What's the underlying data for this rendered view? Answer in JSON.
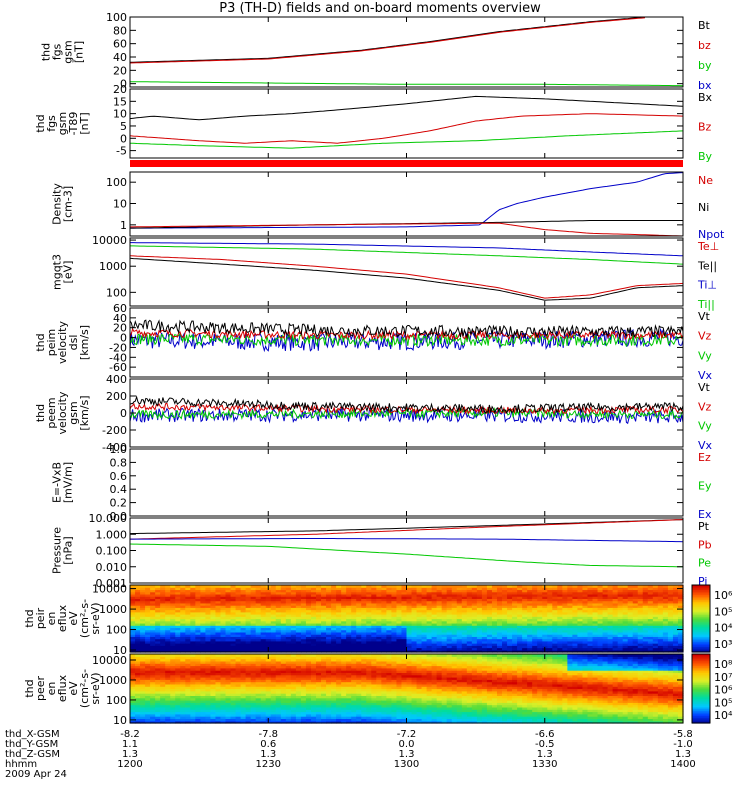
{
  "title": "P3 (TH-D) fields and on-board moments overview",
  "date": "2009 Apr 24",
  "colorbar1": {
    "ticks": [
      "10⁶",
      "10⁵",
      "10⁴",
      "10³"
    ]
  },
  "colorbar2": {
    "ticks": [
      "10⁸",
      "10⁷",
      "10⁶",
      "10⁵",
      "10⁴"
    ]
  },
  "colors": {
    "black": "#000000",
    "red": "#d40000",
    "green": "#00c800",
    "blue": "#0000c8",
    "bar": "#ff0000"
  },
  "chart_data": {
    "type": "line",
    "x_ticks": [
      "1200",
      "1230",
      "1300",
      "1330",
      "1400"
    ],
    "x_tick_minutes": [
      0,
      30,
      60,
      90,
      120
    ],
    "ephemeris": [
      {
        "label": "thd_X-GSM",
        "values": [
          "-8.2",
          "-7.8",
          "-7.2",
          "-6.6",
          "-5.8"
        ]
      },
      {
        "label": "thd_Y-GSM",
        "values": [
          "1.1",
          "0.6",
          "0.0",
          "-0.5",
          "-1.0"
        ]
      },
      {
        "label": "thd_Z-GSM",
        "values": [
          "1.3",
          "1.3",
          "1.3",
          "1.3",
          "1.3"
        ]
      },
      {
        "label": "hhmm",
        "values": [
          "1200",
          "1230",
          "1300",
          "1330",
          "1400"
        ]
      }
    ],
    "panels": [
      {
        "ylabel": [
          "thd",
          "fgs",
          "gsm",
          "[nT]"
        ],
        "scale": "linear",
        "ylim": [
          -5,
          100
        ],
        "yticks": [
          "100",
          "80",
          "60",
          "40",
          "20",
          "0"
        ],
        "ytick_values": [
          100,
          80,
          60,
          40,
          20,
          0
        ],
        "legend": [
          {
            "text": "Bt",
            "color": "#000000"
          },
          {
            "text": "bz",
            "color": "#d40000"
          },
          {
            "text": "by",
            "color": "#00c800"
          },
          {
            "text": "bx",
            "color": "#0000c8"
          }
        ],
        "series": [
          {
            "name": "Bt",
            "color": "#000000",
            "x": [
              0,
              30,
              50,
              65,
              80,
              100,
              112
            ],
            "y": [
              32,
              38,
              50,
              63,
              78,
              93,
              100
            ]
          },
          {
            "name": "bz",
            "color": "#d40000",
            "x": [
              0,
              30,
              50,
              65,
              80,
              100,
              112
            ],
            "y": [
              31,
              37,
              49,
              62,
              77,
              92,
              99
            ]
          },
          {
            "name": "by",
            "color": "#00c800",
            "x": [
              0,
              30,
              60,
              90,
              120
            ],
            "y": [
              3,
              1,
              -1,
              -1,
              -3
            ]
          },
          {
            "name": "bx",
            "color": "#0000c8",
            "x": [
              0,
              60,
              120
            ],
            "y": [
              -5,
              -5,
              -5
            ]
          }
        ]
      },
      {
        "ylabel": [
          "thd",
          "fgs",
          "gsm",
          "-T89",
          "[nT]"
        ],
        "scale": "linear",
        "ylim": [
          -8,
          20
        ],
        "yticks": [
          "20",
          "15",
          "10",
          "5",
          "0",
          "-5"
        ],
        "ytick_values": [
          20,
          15,
          10,
          5,
          0,
          -5
        ],
        "legend": [
          {
            "text": "Bx",
            "color": "#000000"
          },
          {
            "text": "Bz",
            "color": "#d40000"
          },
          {
            "text": "By",
            "color": "#00c800"
          }
        ],
        "series": [
          {
            "name": "Bx",
            "color": "#000000",
            "x": [
              0,
              5,
              15,
              25,
              35,
              45,
              60,
              75,
              90,
              100,
              110,
              120
            ],
            "y": [
              8,
              9,
              7.5,
              9,
              10,
              11.5,
              14,
              17,
              16,
              15,
              14,
              13
            ]
          },
          {
            "name": "Bz",
            "color": "#d40000",
            "x": [
              0,
              15,
              25,
              35,
              45,
              55,
              65,
              75,
              85,
              100,
              120
            ],
            "y": [
              1,
              -1,
              -2,
              -1,
              -2,
              0,
              3,
              7,
              9,
              10,
              9
            ]
          },
          {
            "name": "By",
            "color": "#00c800",
            "x": [
              0,
              15,
              35,
              55,
              75,
              95,
              120
            ],
            "y": [
              -2,
              -3,
              -4,
              -2,
              -1,
              1,
              3
            ]
          }
        ]
      },
      {
        "ylabel": [
          "Density",
          "[cm-3]"
        ],
        "scale": "log",
        "ylim": [
          0.3,
          300
        ],
        "yticks": [
          "100",
          "10",
          "1"
        ],
        "ytick_values": [
          100,
          10,
          1
        ],
        "legend": [
          {
            "text": "Ne",
            "color": "#d40000"
          },
          {
            "text": "Ni",
            "color": "#000000"
          },
          {
            "text": "Npot",
            "color": "#0000c8"
          }
        ],
        "series": [
          {
            "name": "Npot",
            "color": "#0000c8",
            "x": [
              0,
              60,
              76,
              80,
              84,
              90,
              100,
              110,
              116,
              120
            ],
            "y": [
              0.7,
              0.8,
              1.0,
              5,
              10,
              20,
              50,
              100,
              250,
              280
            ]
          },
          {
            "name": "Ni",
            "color": "#000000",
            "x": [
              0,
              40,
              80,
              100,
              120
            ],
            "y": [
              0.7,
              1.0,
              1.3,
              1.6,
              1.6
            ]
          },
          {
            "name": "Ne",
            "color": "#d40000",
            "x": [
              0,
              40,
              80,
              90,
              100,
              110,
              120
            ],
            "y": [
              0.8,
              1.0,
              1.2,
              0.6,
              0.4,
              0.35,
              0.3
            ]
          }
        ]
      },
      {
        "ylabel": [
          "mgqt3",
          "[eV]"
        ],
        "scale": "log",
        "ylim": [
          30,
          12000
        ],
        "yticks": [
          "10000",
          "1000",
          "100"
        ],
        "ytick_values": [
          10000,
          1000,
          100
        ],
        "legend": [
          {
            "text": "Te⊥",
            "color": "#d40000"
          },
          {
            "text": "Te||",
            "color": "#000000"
          },
          {
            "text": "Ti⊥",
            "color": "#0000c8"
          },
          {
            "text": "Ti||",
            "color": "#00c800"
          }
        ],
        "series": [
          {
            "name": "Ti⊥",
            "color": "#0000c8",
            "x": [
              0,
              40,
              80,
              100,
              120
            ],
            "y": [
              8000,
              7000,
              5000,
              3500,
              2500
            ]
          },
          {
            "name": "Ti||",
            "color": "#00c800",
            "x": [
              0,
              40,
              80,
              100,
              120
            ],
            "y": [
              6000,
              4500,
              2500,
              1800,
              1200
            ]
          },
          {
            "name": "Te⊥",
            "color": "#d40000",
            "x": [
              0,
              20,
              40,
              60,
              80,
              90,
              100,
              110,
              120
            ],
            "y": [
              2500,
              1800,
              1000,
              500,
              150,
              60,
              80,
              180,
              220
            ]
          },
          {
            "name": "Te||",
            "color": "#000000",
            "x": [
              0,
              20,
              40,
              60,
              80,
              90,
              100,
              110,
              120
            ],
            "y": [
              2000,
              1200,
              700,
              350,
              120,
              50,
              60,
              150,
              180
            ]
          }
        ]
      },
      {
        "ylabel": [
          "thd",
          "peim",
          "velocity",
          "dsl",
          "[km/s]"
        ],
        "scale": "linear",
        "ylim": [
          -80,
          60
        ],
        "yticks": [
          "60",
          "40",
          "20",
          "0",
          "-20",
          "-40",
          "-60"
        ],
        "ytick_values": [
          60,
          40,
          20,
          0,
          -20,
          -40,
          -60
        ],
        "legend": [
          {
            "text": "Vt",
            "color": "#000000"
          },
          {
            "text": "Vz",
            "color": "#d40000"
          },
          {
            "text": "Vy",
            "color": "#00c800"
          },
          {
            "text": "Vx",
            "color": "#0000c8"
          }
        ],
        "series": [
          {
            "name": "Vx",
            "color": "#0000c8",
            "x": [
              0,
              40,
              80,
              120
            ],
            "y": [
              -5,
              -10,
              -5,
              0
            ],
            "noise": 18
          },
          {
            "name": "Vy",
            "color": "#00c800",
            "x": [
              0,
              40,
              80,
              120
            ],
            "y": [
              -2,
              -5,
              -5,
              -5
            ],
            "noise": 12
          },
          {
            "name": "Vz",
            "color": "#d40000",
            "x": [
              0,
              40,
              80,
              120
            ],
            "y": [
              10,
              5,
              5,
              5
            ],
            "noise": 8
          },
          {
            "name": "Vt",
            "color": "#000000",
            "x": [
              0,
              40,
              80,
              120
            ],
            "y": [
              25,
              15,
              12,
              12
            ],
            "noise": 12
          }
        ]
      },
      {
        "ylabel": [
          "thd",
          "peem",
          "velocity",
          "gsm",
          "[km/s]"
        ],
        "scale": "linear",
        "ylim": [
          -400,
          400
        ],
        "yticks": [
          "400",
          "200",
          "0",
          "-200",
          "-400"
        ],
        "ytick_values": [
          400,
          200,
          0,
          -200,
          -400
        ],
        "legend": [
          {
            "text": "Vt",
            "color": "#000000"
          },
          {
            "text": "Vz",
            "color": "#d40000"
          },
          {
            "text": "Vy",
            "color": "#00c800"
          },
          {
            "text": "Vx",
            "color": "#0000c8"
          }
        ],
        "series": [
          {
            "name": "Vx",
            "color": "#0000c8",
            "x": [
              0,
              40,
              80,
              120
            ],
            "y": [
              -30,
              -20,
              -30,
              -50
            ],
            "noise": 80
          },
          {
            "name": "Vy",
            "color": "#00c800",
            "x": [
              0,
              40,
              80,
              120
            ],
            "y": [
              -20,
              -10,
              0,
              -20
            ],
            "noise": 50
          },
          {
            "name": "Vz",
            "color": "#d40000",
            "x": [
              0,
              40,
              80,
              120
            ],
            "y": [
              80,
              50,
              30,
              40
            ],
            "noise": 40
          },
          {
            "name": "Vt",
            "color": "#000000",
            "x": [
              0,
              40,
              80,
              120
            ],
            "y": [
              150,
              80,
              50,
              80
            ],
            "noise": 50
          }
        ]
      },
      {
        "ylabel": [
          "E=-VxB",
          "[mV/m]"
        ],
        "scale": "linear",
        "ylim": [
          0,
          1
        ],
        "yticks": [
          "1.0",
          "0.8",
          "0.6",
          "0.4",
          "0.2",
          "0.0"
        ],
        "ytick_values": [
          1.0,
          0.8,
          0.6,
          0.4,
          0.2,
          0.0
        ],
        "legend": [
          {
            "text": "Ez",
            "color": "#d40000"
          },
          {
            "text": "Ey",
            "color": "#00c800"
          },
          {
            "text": "Ex",
            "color": "#0000c8"
          }
        ],
        "series": []
      },
      {
        "ylabel": [
          "Pressure",
          "[nPa]"
        ],
        "scale": "log",
        "ylim": [
          0.001,
          10
        ],
        "yticks": [
          "10.000",
          "1.000",
          "0.100",
          "0.010",
          "0.001"
        ],
        "ytick_values": [
          10,
          1,
          0.1,
          0.01,
          0.001
        ],
        "legend": [
          {
            "text": "Pt",
            "color": "#000000"
          },
          {
            "text": "Pb",
            "color": "#d40000"
          },
          {
            "text": "Pe",
            "color": "#00c800"
          },
          {
            "text": "Pi",
            "color": "#0000c8"
          }
        ],
        "series": [
          {
            "name": "Pt",
            "color": "#000000",
            "x": [
              0,
              40,
              80,
              120
            ],
            "y": [
              1.1,
              1.6,
              3.5,
              8
            ]
          },
          {
            "name": "Pb",
            "color": "#d40000",
            "x": [
              0,
              40,
              80,
              120
            ],
            "y": [
              0.5,
              1.0,
              3,
              8
            ]
          },
          {
            "name": "Pi",
            "color": "#0000c8",
            "x": [
              0,
              40,
              80,
              120
            ],
            "y": [
              0.5,
              0.55,
              0.5,
              0.35
            ]
          },
          {
            "name": "Pe",
            "color": "#00c800",
            "x": [
              0,
              30,
              60,
              85,
              100,
              120
            ],
            "y": [
              0.25,
              0.18,
              0.06,
              0.02,
              0.012,
              0.01
            ]
          }
        ]
      },
      {
        "ylabel": [
          "thd",
          "peir",
          "en",
          "eflux",
          "eV",
          "(cm²-s-",
          "sr-eV)"
        ],
        "scale": "log",
        "ylim": [
          8,
          15000
        ],
        "yticks": [
          "10000",
          "1000",
          "100",
          "10"
        ],
        "ytick_values": [
          10000,
          1000,
          100,
          10
        ],
        "kind": "spectrogram-ion"
      },
      {
        "ylabel": [
          "thd",
          "peer",
          "en",
          "eflux",
          "eV",
          "(cm²-s-",
          "sr-eV)"
        ],
        "scale": "log",
        "ylim": [
          7,
          20000
        ],
        "yticks": [
          "10000",
          "1000",
          "100",
          "10"
        ],
        "ytick_values": [
          10000,
          1000,
          100,
          10
        ],
        "kind": "spectrogram-electron"
      }
    ]
  }
}
